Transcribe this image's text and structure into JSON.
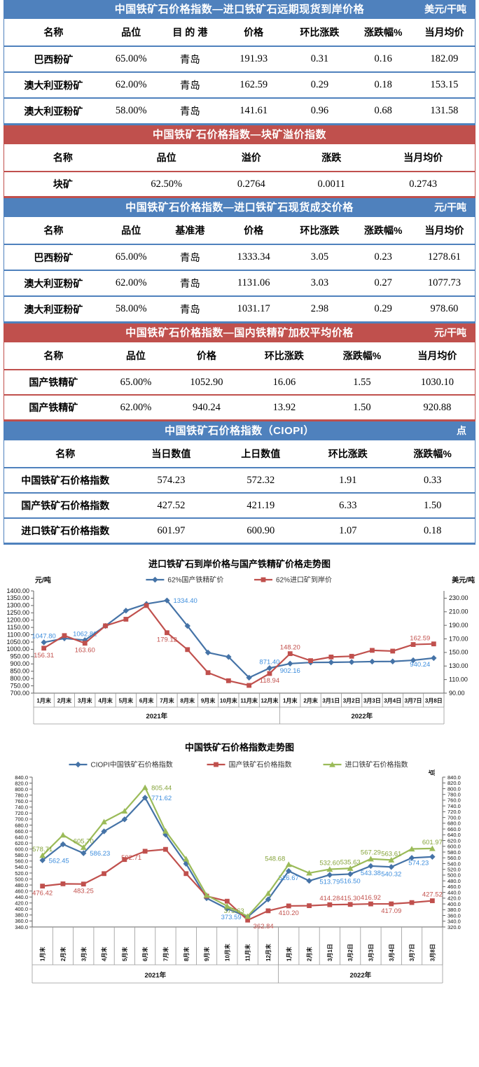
{
  "colors": {
    "table_blue": "#4F81BD",
    "table_red": "#C0504D",
    "series_blue": "#4573A7",
    "series_red": "#C0504D",
    "series_green": "#9BBB59",
    "label_blue": "#3E8EDD",
    "label_red": "#C3524E",
    "label_green": "#86A43C"
  },
  "tables": [
    {
      "theme": "blue",
      "title": "中国铁矿石价格指数—进口铁矿石远期现货到岸价格",
      "unit": "美元/干吨",
      "columns": [
        "名称",
        "品位",
        "目 的 港",
        "价格",
        "环比涨跌",
        "涨跌幅%",
        "当月均价"
      ],
      "rows": [
        [
          "巴西粉矿",
          "65.00%",
          "青岛",
          "191.93",
          "0.31",
          "0.16",
          "182.09"
        ],
        [
          "澳大利亚粉矿",
          "62.00%",
          "青岛",
          "162.59",
          "0.29",
          "0.18",
          "153.15"
        ],
        [
          "澳大利亚粉矿",
          "58.00%",
          "青岛",
          "141.61",
          "0.96",
          "0.68",
          "131.58"
        ]
      ]
    },
    {
      "theme": "red",
      "title": "中国铁矿石价格指数—块矿溢价指数",
      "unit": "",
      "columns": [
        "名称",
        "品位",
        "溢价",
        "涨跌",
        "当月均价"
      ],
      "rows": [
        [
          "块矿",
          "62.50%",
          "0.2764",
          "0.0011",
          "0.2743"
        ]
      ]
    },
    {
      "theme": "blue",
      "title": "中国铁矿石价格指数—进口铁矿石现货成交价格",
      "unit": "元/干吨",
      "columns": [
        "名称",
        "品位",
        "基准港",
        "价格",
        "环比涨跌",
        "涨跌幅%",
        "当月均价"
      ],
      "rows": [
        [
          "巴西粉矿",
          "65.00%",
          "青岛",
          "1333.34",
          "3.05",
          "0.23",
          "1278.61"
        ],
        [
          "澳大利亚粉矿",
          "62.00%",
          "青岛",
          "1131.06",
          "3.03",
          "0.27",
          "1077.73"
        ],
        [
          "澳大利亚粉矿",
          "58.00%",
          "青岛",
          "1031.17",
          "2.98",
          "0.29",
          "978.60"
        ]
      ]
    },
    {
      "theme": "red",
      "title": "中国铁矿石价格指数—国内铁精矿加权平均价格",
      "unit": "元/干吨",
      "columns": [
        "名称",
        "品位",
        "价格",
        "环比涨跌",
        "涨跌幅%",
        "当月均价"
      ],
      "rows": [
        [
          "国产铁精矿",
          "65.00%",
          "1052.90",
          "16.06",
          "1.55",
          "1030.10"
        ],
        [
          "国产铁精矿",
          "62.00%",
          "940.24",
          "13.92",
          "1.50",
          "920.88"
        ]
      ]
    },
    {
      "theme": "blue",
      "title": "中国铁矿石价格指数（CIOPI）",
      "unit": "点",
      "columns": [
        "名称",
        "当日数值",
        "上日数值",
        "环比涨跌",
        "涨跌幅%"
      ],
      "rows": [
        [
          "中国铁矿石价格指数",
          "574.23",
          "572.32",
          "1.91",
          "0.33"
        ],
        [
          "国产铁矿石价格指数",
          "427.52",
          "421.19",
          "6.33",
          "1.50"
        ],
        [
          "进口铁矿石价格指数",
          "601.97",
          "600.90",
          "1.07",
          "0.18"
        ]
      ]
    }
  ],
  "chart_data": [
    {
      "type": "line",
      "title": "进口铁矿石到岸价格与国产铁精矿价格走势图",
      "grid": false,
      "legend_position": "top",
      "left_axis": {
        "title": "元/吨",
        "min": 700,
        "max": 1400,
        "step": 50,
        "decimals": 2
      },
      "right_axis": {
        "title": "美元/吨",
        "min": 90,
        "max": 230,
        "step": 20,
        "decimals": 2,
        "left_equiv": {
          "offset": 700,
          "scale": 4.642857
        }
      },
      "categories": [
        "1月末",
        "2月末",
        "3月末",
        "4月末",
        "5月末",
        "6月末",
        "7月末",
        "8月末",
        "9月末",
        "10月末",
        "11月末",
        "12月末",
        "1月末",
        "2月末",
        "3月1日",
        "3月2日",
        "3月3日",
        "3月4日",
        "3月7日",
        "3月8日"
      ],
      "year_groups": [
        {
          "label": "2021年",
          "count": 12
        },
        {
          "label": "2022年",
          "count": 8
        }
      ],
      "series": [
        {
          "name": "62%国产铁精矿价",
          "axis": "left",
          "marker": "diamond",
          "color": "#4573A7",
          "label_color": "#3E8EDD",
          "values": [
            1047.8,
            1075,
            1062.82,
            1160,
            1265,
            1311,
            1334.4,
            1160,
            978,
            948,
            806,
            871.4,
            902.16,
            910,
            911,
            913,
            916,
            917,
            925,
            940.24
          ],
          "point_labels": [
            "1047.80",
            null,
            "1062.82",
            null,
            null,
            null,
            "1334.40",
            null,
            null,
            null,
            null,
            "871.40",
            "902.16",
            null,
            null,
            null,
            null,
            null,
            null,
            "940.24"
          ],
          "label_sides": [
            "above",
            null,
            "above",
            null,
            null,
            null,
            "right",
            null,
            null,
            null,
            null,
            "above",
            "below",
            null,
            null,
            null,
            null,
            null,
            null,
            "left-below"
          ]
        },
        {
          "name": "62%进口矿到岸价",
          "axis": "right",
          "marker": "square",
          "color": "#C0504D",
          "label_color": "#C3524E",
          "values": [
            156.31,
            174.9,
            163.6,
            189.3,
            199.0,
            219.2,
            179.12,
            154.2,
            120.2,
            108.3,
            101.4,
            118.94,
            148.2,
            137.9,
            143.3,
            144.4,
            153.1,
            152.0,
            161.7,
            162.59
          ],
          "point_labels": [
            "156.31",
            null,
            "163.60",
            null,
            null,
            null,
            "179.12",
            null,
            null,
            null,
            null,
            "118.94",
            "148.20",
            null,
            null,
            null,
            null,
            null,
            null,
            "162.59"
          ],
          "label_sides": [
            "below",
            null,
            "below",
            null,
            null,
            null,
            "below",
            null,
            null,
            null,
            null,
            "below",
            "above",
            null,
            null,
            null,
            null,
            null,
            null,
            "left-above"
          ]
        }
      ]
    },
    {
      "type": "line",
      "title": "中国铁矿石价格指数走势图",
      "grid": false,
      "legend_position": "top",
      "left_axis": {
        "title": "",
        "min": 340,
        "max": 840,
        "step": 20,
        "decimals": 1
      },
      "right_axis": {
        "title": "点",
        "min": 320,
        "max": 840,
        "step": 20,
        "decimals": 1
      },
      "categories": [
        "1月末",
        "2月末",
        "3月末",
        "4月末",
        "5月末",
        "6月末",
        "7月末",
        "8月末",
        "9月末",
        "10月末",
        "11月末",
        "12月末",
        "1月末",
        "2月末",
        "3月1日",
        "3月2日",
        "3月3日",
        "3月4日",
        "3月7日",
        "3月8日"
      ],
      "year_groups": [
        {
          "label": "2021年",
          "count": 12
        },
        {
          "label": "2022年",
          "count": 8
        }
      ],
      "x_label_rotation": -90,
      "series": [
        {
          "name": "CIOPI中国铁矿石价格指数",
          "axis": "left",
          "marker": "diamond",
          "color": "#4573A7",
          "label_color": "#3E8EDD",
          "values": [
            562.45,
            616,
            586.23,
            659,
            699,
            771.62,
            648,
            551,
            436,
            401,
            373.59,
            432,
            526.67,
            494,
            513.79,
            516.5,
            543.38,
            540.32,
            570.5,
            574.23
          ],
          "point_labels": [
            "562.45",
            null,
            "586.23",
            null,
            null,
            "771.62",
            null,
            null,
            null,
            null,
            "373.59",
            null,
            "526.67",
            null,
            "513.79",
            "516.50",
            "543.38",
            "540.32",
            null,
            "574.23"
          ],
          "label_sides": [
            "right",
            null,
            "right",
            null,
            null,
            "right",
            null,
            null,
            null,
            null,
            "left",
            null,
            "below",
            null,
            "below",
            "below",
            "below",
            "below",
            null,
            "left-below"
          ]
        },
        {
          "name": "国产铁矿石价格指数",
          "axis": "left",
          "marker": "square",
          "color": "#C0504D",
          "label_color": "#C3524E",
          "values": [
            476.42,
            484,
            483.25,
            518,
            565,
            592.71,
            599,
            518,
            443,
            426,
            362.84,
            394,
            410.2,
            411,
            414.28,
            415.3,
            416.92,
            417.09,
            421.5,
            427.52
          ],
          "point_labels": [
            "476.42",
            null,
            "483.25",
            null,
            null,
            "592.71",
            null,
            null,
            null,
            null,
            "362.84",
            null,
            "410.20",
            null,
            "414.28",
            "415.30",
            "416.92",
            "417.09",
            null,
            "427.52"
          ],
          "label_sides": [
            "below",
            null,
            "below",
            null,
            null,
            "left-below",
            null,
            null,
            null,
            null,
            "right-below",
            null,
            "below",
            null,
            "above",
            "above",
            "above",
            "below",
            null,
            "above"
          ]
        },
        {
          "name": "进口铁矿石价格指数",
          "axis": "left",
          "marker": "triangle",
          "color": "#9BBB59",
          "label_color": "#86A43C",
          "values": [
            578.71,
            647,
            605.7,
            691,
            727,
            805.44,
            660,
            567,
            446,
            410,
            375.63,
            452,
            548.68,
            520,
            532.6,
            535.63,
            567.29,
            563.61,
            600.5,
            601.97
          ],
          "point_labels": [
            "578.71",
            null,
            "605.70",
            null,
            null,
            "805.44",
            null,
            null,
            null,
            null,
            "375.63",
            null,
            "548.68",
            null,
            "532.60",
            "535.63",
            "567.29",
            "563.61",
            null,
            "601.97"
          ],
          "label_sides": [
            "above",
            null,
            "above",
            null,
            null,
            "right",
            null,
            null,
            null,
            null,
            "left-above",
            null,
            "left-above",
            null,
            "above",
            "above",
            "above",
            "above",
            null,
            "above"
          ]
        }
      ]
    }
  ]
}
